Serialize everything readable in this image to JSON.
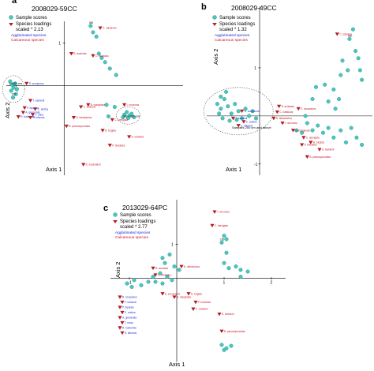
{
  "colors": {
    "sample": "#46c8c0",
    "species": "#b01e22",
    "agglutinated": "#1d2bd0",
    "calcareous": "#c8142a"
  },
  "legend": {
    "sample": "Sample scores",
    "species": "Species loadings",
    "agglutinated": "Agglutinated species",
    "calcareous": "Calcareous species"
  },
  "chart_data": [
    {
      "panel": "a",
      "type": "scatter",
      "title": "2008029-59CC",
      "xlabel": "Axis  1",
      "ylabel": "Axis 2",
      "scaling": "scaled * 2.13",
      "xlim": [
        -1.2,
        2.6
      ],
      "ylim": [
        -2.1,
        1.6
      ],
      "x_ticks": [
        -1
      ],
      "y_ticks": [
        1
      ],
      "legend_position": "top-left",
      "annotations": [
        {
          "text": "1-105 cm",
          "x": -1.05,
          "y": 0.05
        },
        {
          "text": "180-185 cm",
          "x": 1.32,
          "y": -0.72
        }
      ],
      "samples": [
        {
          "label": "1",
          "x": -1.08,
          "y": 0.02
        },
        {
          "label": "",
          "x": -1.02,
          "y": 0.05
        },
        {
          "label": "",
          "x": -1.05,
          "y": -0.05
        },
        {
          "label": "",
          "x": -1.1,
          "y": -0.12
        },
        {
          "label": "",
          "x": -0.98,
          "y": -0.08
        },
        {
          "label": "",
          "x": -1.12,
          "y": 0.1
        },
        {
          "label": "",
          "x": -1.0,
          "y": -0.2
        },
        {
          "label": "105",
          "x": -1.06,
          "y": -0.28
        },
        {
          "label": "450",
          "x": 0.55,
          "y": 1.4
        },
        {
          "label": "",
          "x": 0.6,
          "y": 1.25
        },
        {
          "label": "",
          "x": 0.67,
          "y": 1.15
        },
        {
          "label": "",
          "x": 0.72,
          "y": 0.75
        },
        {
          "label": "",
          "x": 0.78,
          "y": 0.65
        },
        {
          "label": "",
          "x": 0.85,
          "y": 0.55
        },
        {
          "label": "",
          "x": 0.95,
          "y": 0.4
        },
        {
          "label": "",
          "x": 1.08,
          "y": 0.25
        },
        {
          "label": "",
          "x": 0.88,
          "y": -0.45
        },
        {
          "label": "",
          "x": 0.92,
          "y": -0.72
        },
        {
          "label": "",
          "x": 1.05,
          "y": -0.5
        },
        {
          "label": "",
          "x": 1.25,
          "y": -0.68
        },
        {
          "label": "",
          "x": 1.3,
          "y": -0.62
        },
        {
          "label": "",
          "x": 1.36,
          "y": -0.7
        },
        {
          "label": "",
          "x": 1.33,
          "y": -0.76
        },
        {
          "label": "",
          "x": 1.4,
          "y": -0.66
        },
        {
          "label": "",
          "x": 1.22,
          "y": -0.74
        },
        {
          "label": "",
          "x": 1.45,
          "y": -0.74
        }
      ],
      "species": [
        {
          "label": "C. calcareus",
          "group": "calcareous",
          "x": 0.75,
          "y": 1.35
        },
        {
          "label": "B. aculeata",
          "group": "calcareous",
          "x": 0.15,
          "y": 0.75
        },
        {
          "label": "C. lobatulus",
          "group": "calcareous",
          "x": 0.6,
          "y": 0.7
        },
        {
          "label": "B. marginata",
          "group": "calcareous",
          "x": 0.5,
          "y": -0.45
        },
        {
          "label": "C. scitulum",
          "group": "calcareous",
          "x": 0.35,
          "y": -0.5
        },
        {
          "label": "N. labradorica",
          "group": "calcareous",
          "x": 0.2,
          "y": -0.75
        },
        {
          "label": "I. norcrossi",
          "group": "calcareous",
          "x": 1.25,
          "y": -0.45
        },
        {
          "label": "C. laevigata",
          "group": "calcareous",
          "x": 1.0,
          "y": -0.8
        },
        {
          "label": "B. pseudopunctata",
          "group": "calcareous",
          "x": 0.05,
          "y": -0.95
        },
        {
          "label": "N. turgida",
          "group": "calcareous",
          "x": 0.8,
          "y": -1.05
        },
        {
          "label": "S. loeblichi",
          "group": "calcareous",
          "x": 1.35,
          "y": -1.2
        },
        {
          "label": "P. bulloides",
          "group": "calcareous",
          "x": 0.95,
          "y": -1.4
        },
        {
          "label": "E. excavatum",
          "group": "calcareous",
          "x": 0.4,
          "y": -1.85
        },
        {
          "label": "R. scorpiurus",
          "group": "agglutinated",
          "x": -0.78,
          "y": 0.05
        },
        {
          "label": "T. earlandi",
          "group": "agglutinated",
          "x": -0.7,
          "y": -0.35
        },
        {
          "label": "P. bipolare",
          "group": "agglutinated",
          "x": -0.82,
          "y": -0.52
        },
        {
          "label": "C. arctica",
          "group": "agglutinated",
          "x": -0.6,
          "y": -0.55
        },
        {
          "label": "A. glomerata",
          "group": "agglutinated",
          "x": -0.85,
          "y": -0.63
        },
        {
          "label": "T. nana",
          "group": "agglutinated",
          "x": -0.65,
          "y": -0.68
        },
        {
          "label": "R. fusiformis",
          "group": "agglutinated",
          "x": -0.95,
          "y": -0.73
        },
        {
          "label": "S. biformis",
          "group": "agglutinated",
          "x": -0.7,
          "y": -0.75
        }
      ]
    },
    {
      "panel": "b",
      "type": "scatter",
      "title": "2008029-49CC",
      "xlabel": "Axis  1",
      "ylabel": "Axis 2",
      "scaling": "scaled * 1.32",
      "xlim": [
        -1.5,
        3.2
      ],
      "ylim": [
        -1.2,
        2.0
      ],
      "x_ticks": [],
      "y_ticks": [
        1,
        -1
      ],
      "legend_position": "top-left",
      "annotations": [
        {
          "text": "Samples 200 cm and above",
          "x": -0.65,
          "y": -0.25
        }
      ],
      "samples": [
        {
          "label": "",
          "x": 2.65,
          "y": 1.8
        },
        {
          "label": "500",
          "x": 2.55,
          "y": 1.6
        },
        {
          "label": "",
          "x": 2.72,
          "y": 1.35
        },
        {
          "label": "",
          "x": 2.8,
          "y": 1.2
        },
        {
          "label": "",
          "x": 2.85,
          "y": 0.95
        },
        {
          "label": "",
          "x": 2.9,
          "y": 0.75
        },
        {
          "label": "",
          "x": 2.5,
          "y": 0.95
        },
        {
          "label": "",
          "x": 2.35,
          "y": 1.15
        },
        {
          "label": "",
          "x": 2.3,
          "y": 0.85
        },
        {
          "label": "",
          "x": 2.1,
          "y": 0.55
        },
        {
          "label": "",
          "x": 2.25,
          "y": 0.35
        },
        {
          "label": "",
          "x": 1.85,
          "y": 0.65
        },
        {
          "label": "",
          "x": 1.95,
          "y": 0.3
        },
        {
          "label": "",
          "x": 2.15,
          "y": 0.15
        },
        {
          "label": "",
          "x": 1.6,
          "y": 0.6
        },
        {
          "label": "",
          "x": 1.5,
          "y": 0.35
        },
        {
          "label": "",
          "x": 1.3,
          "y": 0.0
        },
        {
          "label": "",
          "x": 1.35,
          "y": -0.15
        },
        {
          "label": "",
          "x": 1.5,
          "y": -0.3
        },
        {
          "label": "",
          "x": 1.65,
          "y": -0.2
        },
        {
          "label": "",
          "x": 1.8,
          "y": -0.35
        },
        {
          "label": "",
          "x": 1.95,
          "y": -0.25
        },
        {
          "label": "",
          "x": 2.1,
          "y": -0.45
        },
        {
          "label": "",
          "x": 2.3,
          "y": -0.3
        },
        {
          "label": "",
          "x": 2.45,
          "y": -0.55
        },
        {
          "label": "",
          "x": 2.6,
          "y": -0.25
        },
        {
          "label": "",
          "x": 2.75,
          "y": -0.45
        },
        {
          "label": "",
          "x": 2.9,
          "y": -0.6
        },
        {
          "label": "",
          "x": 1.2,
          "y": -0.35
        },
        {
          "label": "",
          "x": 1.05,
          "y": -0.3
        },
        {
          "label": "",
          "x": -1.2,
          "y": 0.25
        },
        {
          "label": "",
          "x": -1.1,
          "y": 0.15
        },
        {
          "label": "",
          "x": -1.0,
          "y": 0.35
        },
        {
          "label": "",
          "x": -0.9,
          "y": 0.2
        },
        {
          "label": "",
          "x": -0.8,
          "y": 0.05
        },
        {
          "label": "",
          "x": -0.7,
          "y": 0.25
        },
        {
          "label": "",
          "x": -0.6,
          "y": 0.1
        },
        {
          "label": "",
          "x": -0.5,
          "y": -0.05
        },
        {
          "label": "",
          "x": -0.4,
          "y": 0.15
        },
        {
          "label": "",
          "x": -0.3,
          "y": 0.0
        },
        {
          "label": "",
          "x": -0.2,
          "y": 0.1
        },
        {
          "label": "",
          "x": -0.1,
          "y": -0.05
        },
        {
          "label": "",
          "x": -1.15,
          "y": 0.05
        },
        {
          "label": "",
          "x": -1.05,
          "y": -0.05
        },
        {
          "label": "",
          "x": -0.85,
          "y": -0.1
        },
        {
          "label": "",
          "x": -0.65,
          "y": -0.08
        },
        {
          "label": "",
          "x": -1.1,
          "y": 0.4
        },
        {
          "label": "",
          "x": -0.95,
          "y": 0.5
        }
      ],
      "species": [
        {
          "label": "R. scorpiurus",
          "group": "agglutinated",
          "x": -0.5,
          "y": 0.1
        },
        {
          "label": "T. earlandi",
          "group": "agglutinated",
          "x": -0.75,
          "y": -0.05
        },
        {
          "label": "C. arctica",
          "group": "agglutinated",
          "x": -0.45,
          "y": -0.12
        },
        {
          "label": "S. biformis",
          "group": "agglutinated",
          "x": -0.6,
          "y": -0.2
        },
        {
          "label": "B. aculeata",
          "group": "calcareous",
          "x": 0.55,
          "y": 0.2
        },
        {
          "label": "C. lobatulus",
          "group": "calcareous",
          "x": 0.5,
          "y": 0.08
        },
        {
          "label": "N. labradorica",
          "group": "calcareous",
          "x": 0.4,
          "y": -0.05
        },
        {
          "label": "I. norcrossi",
          "group": "calcareous",
          "x": 0.65,
          "y": -0.15
        },
        {
          "label": "E. excavatum",
          "group": "calcareous",
          "x": 1.1,
          "y": 0.15
        },
        {
          "label": "B. marginata",
          "group": "calcareous",
          "x": 0.95,
          "y": -0.3
        },
        {
          "label": "C. laevigata",
          "group": "calcareous",
          "x": 1.25,
          "y": -0.45
        },
        {
          "label": "N. turgida",
          "group": "calcareous",
          "x": 1.45,
          "y": -0.55
        },
        {
          "label": "P. bulloides",
          "group": "calcareous",
          "x": 1.2,
          "y": -0.6
        },
        {
          "label": "S. loeblichi",
          "group": "calcareous",
          "x": 1.7,
          "y": -0.7
        },
        {
          "label": "C. scitulum",
          "group": "calcareous",
          "x": 2.2,
          "y": 1.7
        },
        {
          "label": "B. pseudopunctata",
          "group": "calcareous",
          "x": 1.35,
          "y": -0.85
        }
      ]
    },
    {
      "panel": "c",
      "type": "scatter",
      "title": "2013029-64PC",
      "xlabel": "Axis 1",
      "ylabel": "Axis 2",
      "scaling": "scaled * 2.77",
      "xlim": [
        -1.4,
        2.3
      ],
      "ylim": [
        -2.3,
        2.1
      ],
      "x_ticks": [
        -1,
        1,
        2
      ],
      "y_ticks": [
        1
      ],
      "legend_position": "top-left",
      "annotations": [],
      "samples": [
        {
          "label": "",
          "x": 1.0,
          "y": 1.25
        },
        {
          "label": "",
          "x": 1.05,
          "y": 1.15
        },
        {
          "label": "165",
          "x": 0.95,
          "y": 1.05
        },
        {
          "label": "",
          "x": 1.05,
          "y": 0.75
        },
        {
          "label": "",
          "x": 1.0,
          "y": 0.45
        },
        {
          "label": "",
          "x": 1.1,
          "y": 0.3
        },
        {
          "label": "",
          "x": 1.25,
          "y": 0.35
        },
        {
          "label": "",
          "x": 1.35,
          "y": 0.25
        },
        {
          "label": "",
          "x": 1.5,
          "y": 0.2
        },
        {
          "label": "",
          "x": 1.35,
          "y": 0.05
        },
        {
          "label": "",
          "x": -0.3,
          "y": 0.6
        },
        {
          "label": "",
          "x": -0.15,
          "y": 0.7
        },
        {
          "label": "",
          "x": -0.25,
          "y": 0.45
        },
        {
          "label": "",
          "x": -0.05,
          "y": 0.35
        },
        {
          "label": "",
          "x": 0.05,
          "y": 0.25
        },
        {
          "label": "",
          "x": -0.35,
          "y": 0.15
        },
        {
          "label": "",
          "x": -0.2,
          "y": 0.05
        },
        {
          "label": "",
          "x": -0.1,
          "y": -0.05
        },
        {
          "label": "",
          "x": -0.45,
          "y": -0.1
        },
        {
          "label": "",
          "x": -0.3,
          "y": -0.15
        },
        {
          "label": "",
          "x": -0.6,
          "y": -0.1
        },
        {
          "label": "",
          "x": -0.75,
          "y": -0.2
        },
        {
          "label": "",
          "x": -0.95,
          "y": -0.25
        },
        {
          "label": "",
          "x": -1.05,
          "y": -0.15
        },
        {
          "label": "",
          "x": -0.9,
          "y": -0.05
        },
        {
          "label": "",
          "x": -0.5,
          "y": 0.05
        },
        {
          "label": "",
          "x": 0.95,
          "y": -1.95
        },
        {
          "label": "",
          "x": 1.05,
          "y": -2.05
        },
        {
          "label": "",
          "x": 1.15,
          "y": -1.98
        },
        {
          "label": "",
          "x": 1.0,
          "y": -2.1
        }
      ],
      "species": [
        {
          "label": "I. norcrossi",
          "group": "calcareous",
          "x": 0.8,
          "y": 1.95
        },
        {
          "label": "C. laevigata",
          "group": "calcareous",
          "x": 0.75,
          "y": 1.55
        },
        {
          "label": "N. labradorica",
          "group": "calcareous",
          "x": 0.1,
          "y": 0.35
        },
        {
          "label": "B. aculeata",
          "group": "calcareous",
          "x": -0.5,
          "y": 0.3
        },
        {
          "label": "C. lobatulus",
          "group": "calcareous",
          "x": -0.45,
          "y": 0.1
        },
        {
          "label": "E. excavatum",
          "group": "calcareous",
          "x": -0.3,
          "y": -0.45
        },
        {
          "label": "B. marginata",
          "group": "calcareous",
          "x": -0.05,
          "y": -0.55
        },
        {
          "label": "N. turgida",
          "group": "calcareous",
          "x": 0.25,
          "y": -0.45
        },
        {
          "label": "P. bulloides",
          "group": "calcareous",
          "x": 0.4,
          "y": -0.7
        },
        {
          "label": "C. scitulum",
          "group": "calcareous",
          "x": 0.35,
          "y": -0.9
        },
        {
          "label": "S. loeblichi",
          "group": "calcareous",
          "x": 0.9,
          "y": -1.05
        },
        {
          "label": "B. pseudopunctata",
          "group": "calcareous",
          "x": 0.95,
          "y": -1.55
        },
        {
          "label": "R. scorpiurus",
          "group": "agglutinated",
          "x": -1.2,
          "y": -0.55
        },
        {
          "label": "T. earlandi",
          "group": "agglutinated",
          "x": -1.15,
          "y": -0.7
        },
        {
          "label": "P. bipolare",
          "group": "agglutinated",
          "x": -1.2,
          "y": -0.85
        },
        {
          "label": "C. arctica",
          "group": "agglutinated",
          "x": -1.15,
          "y": -1.0
        },
        {
          "label": "A. glomerata",
          "group": "agglutinated",
          "x": -1.2,
          "y": -1.15
        },
        {
          "label": "T. nana",
          "group": "agglutinated",
          "x": -1.15,
          "y": -1.3
        },
        {
          "label": "R. fusiformis",
          "group": "agglutinated",
          "x": -1.2,
          "y": -1.45
        },
        {
          "label": "S. biformis",
          "group": "agglutinated",
          "x": -1.15,
          "y": -1.6
        }
      ]
    }
  ]
}
